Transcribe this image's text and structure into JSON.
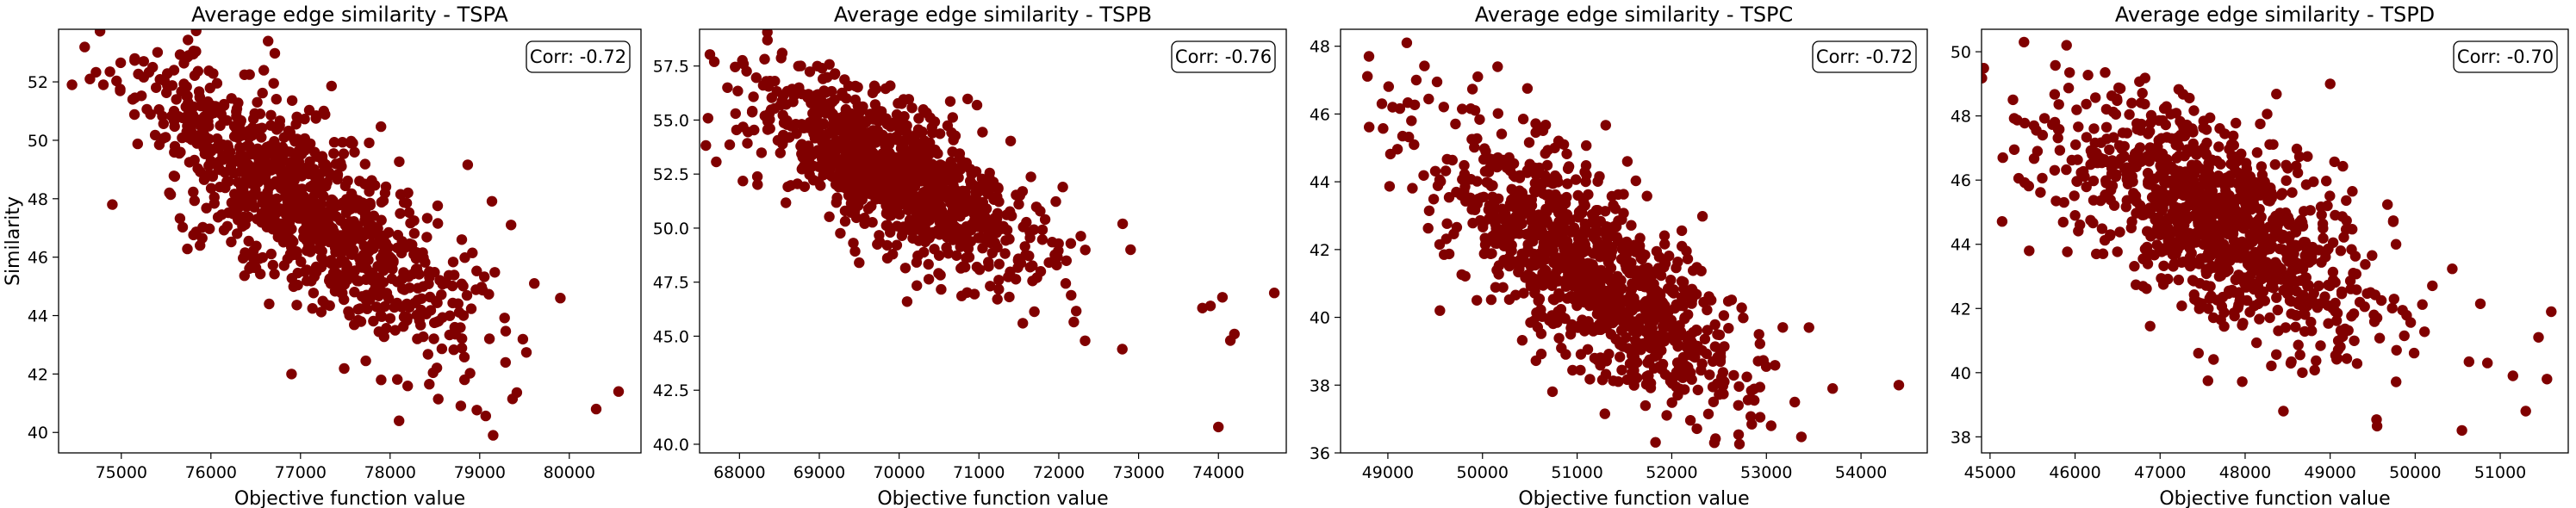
{
  "figure": {
    "facecolor": "#ffffff"
  },
  "marker_color": "#800000",
  "chart_data": [
    {
      "type": "scatter",
      "title": "Average edge similarity - TSPA",
      "xlabel": "Objective function value",
      "ylabel": "Similarity",
      "annotation": "Corr: -0.72",
      "legend_position": "top-right",
      "xlim": [
        74300,
        80800
      ],
      "ylim": [
        39.3,
        53.8
      ],
      "xticks": [
        75000,
        76000,
        77000,
        78000,
        79000,
        80000
      ],
      "yticks": [
        40,
        42,
        44,
        46,
        48,
        50,
        52
      ],
      "ytick_decimals": 0,
      "n_points": 1000,
      "trend": {
        "slope": -0.0021,
        "intercept": 209.6
      },
      "noise_sd": 1.5,
      "x_mean": 77000,
      "x_sd": 900,
      "seed": 11,
      "points": [
        [
          74450,
          51.9
        ],
        [
          74650,
          52.1
        ],
        [
          74800,
          51.9
        ],
        [
          75150,
          52.8
        ],
        [
          75250,
          52.7
        ],
        [
          75350,
          52.5
        ],
        [
          75750,
          52.9
        ],
        [
          74900,
          47.8
        ],
        [
          76100,
          48.4
        ],
        [
          76900,
          42
        ],
        [
          77900,
          41.8
        ],
        [
          78100,
          40.4
        ],
        [
          79150,
          39.9
        ],
        [
          80300,
          40.8
        ],
        [
          80550,
          41.4
        ],
        [
          79350,
          47.1
        ],
        [
          78800,
          46.6
        ],
        [
          79900,
          44.6
        ],
        [
          78200,
          48.2
        ],
        [
          76650,
          44.4
        ]
      ]
    },
    {
      "type": "scatter",
      "title": "Average edge similarity - TSPB",
      "xlabel": "Objective function value",
      "ylabel": "",
      "annotation": "Corr: -0.76",
      "legend_position": "top-right",
      "xlim": [
        67500,
        74850
      ],
      "ylim": [
        39.6,
        59.2
      ],
      "xticks": [
        68000,
        69000,
        70000,
        71000,
        72000,
        73000,
        74000
      ],
      "yticks": [
        40.0,
        42.5,
        45.0,
        47.5,
        50.0,
        52.5,
        55.0,
        57.5
      ],
      "ytick_decimals": 1,
      "n_points": 1000,
      "trend": {
        "slope": -0.0019,
        "intercept": 185.3
      },
      "noise_sd": 1.6,
      "x_mean": 69900,
      "x_sd": 850,
      "seed": 23,
      "points": [
        [
          67850,
          56.5
        ],
        [
          68050,
          57.6
        ],
        [
          68350,
          58.7
        ],
        [
          69500,
          48.4
        ],
        [
          70100,
          46.6
        ],
        [
          73800,
          46.3
        ],
        [
          73900,
          46.4
        ],
        [
          74000,
          40.8
        ],
        [
          74050,
          46.8
        ],
        [
          74150,
          44.8
        ],
        [
          74200,
          45.1
        ],
        [
          74700,
          47.0
        ],
        [
          72900,
          49.0
        ],
        [
          72800,
          50.2
        ],
        [
          71550,
          45.6
        ],
        [
          72050,
          51.9
        ]
      ]
    },
    {
      "type": "scatter",
      "title": "Average edge similarity - TSPC",
      "xlabel": "Objective function value",
      "ylabel": "",
      "annotation": "Corr: -0.72",
      "legend_position": "top-right",
      "xlim": [
        48500,
        54700
      ],
      "ylim": [
        36.0,
        48.5
      ],
      "xticks": [
        49000,
        50000,
        51000,
        52000,
        53000,
        54000
      ],
      "yticks": [
        36,
        38,
        40,
        42,
        44,
        46,
        48
      ],
      "ytick_decimals": 0,
      "n_points": 1000,
      "trend": {
        "slope": -0.00185,
        "intercept": 136.0
      },
      "noise_sd": 1.35,
      "x_mean": 51100,
      "x_sd": 800,
      "seed": 37,
      "points": [
        [
          48800,
          47.7
        ],
        [
          49200,
          48.1
        ],
        [
          49550,
          40.2
        ],
        [
          54400,
          38.0
        ],
        [
          53450,
          39.7
        ],
        [
          53700,
          37.9
        ],
        [
          52450,
          36.3
        ],
        [
          53050,
          36.8
        ],
        [
          53300,
          37.5
        ],
        [
          49050,
          46.2
        ],
        [
          49300,
          47.0
        ],
        [
          49950,
          47.1
        ]
      ]
    },
    {
      "type": "scatter",
      "title": "Average edge similarity - TSPD",
      "xlabel": "Objective function value",
      "ylabel": "",
      "annotation": "Corr: -0.70",
      "legend_position": "top-right",
      "xlim": [
        44900,
        51800
      ],
      "ylim": [
        37.5,
        50.7
      ],
      "xticks": [
        45000,
        46000,
        47000,
        48000,
        49000,
        50000,
        51000
      ],
      "yticks": [
        38,
        40,
        42,
        44,
        46,
        48,
        50
      ],
      "ytick_decimals": 0,
      "n_points": 1000,
      "trend": {
        "slope": -0.0013,
        "intercept": 106.7
      },
      "noise_sd": 1.5,
      "x_mean": 47700,
      "x_sd": 900,
      "seed": 53,
      "points": [
        [
          45150,
          46.7
        ],
        [
          45400,
          50.3
        ],
        [
          45900,
          50.2
        ],
        [
          46000,
          44.9
        ],
        [
          46250,
          43.7
        ],
        [
          48450,
          38.8
        ],
        [
          50550,
          38.2
        ],
        [
          51300,
          38.8
        ],
        [
          51150,
          39.9
        ],
        [
          51550,
          39.8
        ],
        [
          51450,
          41.1
        ],
        [
          51600,
          41.9
        ],
        [
          50850,
          40.3
        ],
        [
          49000,
          49.0
        ]
      ]
    }
  ]
}
